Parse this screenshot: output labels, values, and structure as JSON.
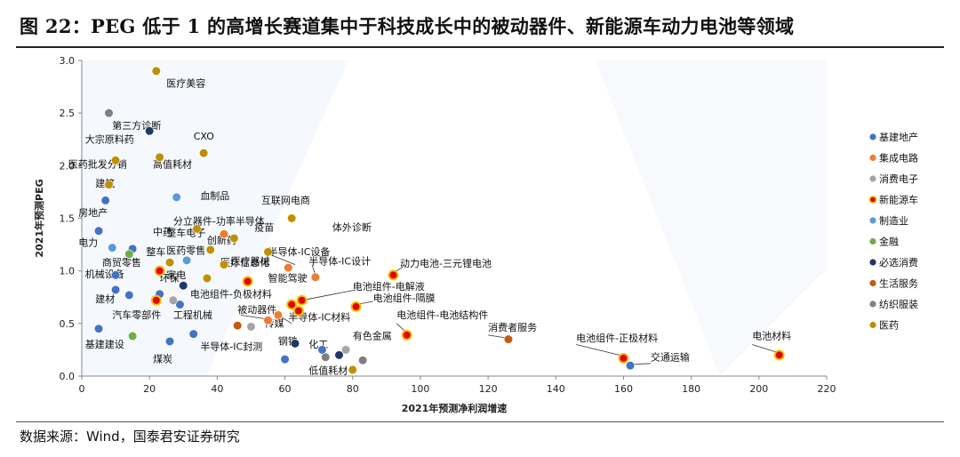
{
  "title": "图 22：PEG 低于 1 的高增长赛道集中于科技成长中的被动器件、新能源车动力电池等领域",
  "source": "数据来源：Wind，国泰君安证券研究",
  "chart_data": {
    "type": "scatter",
    "xlabel": "2021年预测净利润增速",
    "ylabel": "2021年预测PEG",
    "xlim": [
      0,
      220
    ],
    "ylim": [
      0,
      3.0
    ],
    "x_ticks": [
      "0",
      "20",
      "40",
      "60",
      "80",
      "100",
      "120",
      "140",
      "160",
      "180",
      "200",
      "220"
    ],
    "y_ticks": [
      "0.0",
      "0.5",
      "1.0",
      "1.5",
      "2.0",
      "2.5",
      "3.0"
    ],
    "grid": false,
    "legend_position": "right",
    "series": [
      {
        "name": "基建地产",
        "color": "#4472c4",
        "style": "solid",
        "points": [
          {
            "x": 5,
            "y": 1.38,
            "label": "房地产"
          },
          {
            "x": 7,
            "y": 1.67
          },
          {
            "x": 15,
            "y": 1.21,
            "label": "电力"
          },
          {
            "x": 10,
            "y": 0.96,
            "label": "机械设备"
          },
          {
            "x": 14,
            "y": 0.77,
            "label": "建材"
          },
          {
            "x": 10,
            "y": 0.82
          },
          {
            "x": 23,
            "y": 0.78
          },
          {
            "x": 29,
            "y": 0.68
          },
          {
            "x": 5,
            "y": 0.45,
            "label": "基建建设"
          },
          {
            "x": 26,
            "y": 0.33,
            "label": "煤炭"
          },
          {
            "x": 33,
            "y": 0.4
          },
          {
            "x": 60,
            "y": 0.16,
            "label": "钢铁"
          },
          {
            "x": 71,
            "y": 0.25,
            "label": "化工"
          },
          {
            "x": 162,
            "y": 0.1,
            "label": "交通运输"
          }
        ]
      },
      {
        "name": "集成电路",
        "color": "#ed7d31",
        "style": "solid",
        "points": [
          {
            "x": 42,
            "y": 1.35,
            "label": "分立器件-功率半导体"
          },
          {
            "x": 61,
            "y": 1.03,
            "label": "半导体-IC设备"
          },
          {
            "x": 69,
            "y": 0.94,
            "label": "半导体-IC设计"
          },
          {
            "x": 55,
            "y": 0.53,
            "label": "被动器件"
          },
          {
            "x": 58,
            "y": 0.58,
            "label": "半导体-IC材料"
          }
        ]
      },
      {
        "name": "消费电子",
        "color": "#a5a5a5",
        "style": "solid",
        "points": [
          {
            "x": 27,
            "y": 0.72,
            "label": "家电"
          },
          {
            "x": 50,
            "y": 0.47,
            "label": "传媒"
          },
          {
            "x": 78,
            "y": 0.25,
            "label": "有色金属"
          }
        ]
      },
      {
        "name": "新能源车",
        "color": "#e50000",
        "style": "ring",
        "points": [
          {
            "x": 62,
            "y": 0.68,
            "label": "智能驾驶"
          },
          {
            "x": 64,
            "y": 0.62
          },
          {
            "x": 65,
            "y": 0.72
          },
          {
            "x": 81,
            "y": 0.66,
            "label": "电池组件-隔膜"
          },
          {
            "x": 92,
            "y": 0.96,
            "label": "动力电池-三元锂电池"
          },
          {
            "x": 96,
            "y": 0.39,
            "label": "电池组件-电池结构件"
          },
          {
            "x": 160,
            "y": 0.17,
            "label": "电池组件-正极材料"
          },
          {
            "x": 206,
            "y": 0.2,
            "label": "电池材料"
          },
          {
            "x": 23,
            "y": 1.0,
            "label": "整车"
          },
          {
            "x": 49,
            "y": 0.9,
            "label": "电池组件-负极材料"
          },
          {
            "x": 22,
            "y": 0.72
          }
        ]
      },
      {
        "name": "制造业",
        "color": "#5b9bd5",
        "style": "solid",
        "points": [
          {
            "x": 28,
            "y": 1.7,
            "label": "血制品"
          },
          {
            "x": 9,
            "y": 1.22
          },
          {
            "x": 31,
            "y": 1.1,
            "label": "工程机械"
          }
        ]
      },
      {
        "name": "金融",
        "color": "#70ad47",
        "style": "solid",
        "points": [
          {
            "x": 15,
            "y": 0.38,
            "label": "汽车零部件"
          },
          {
            "x": 14,
            "y": 1.16,
            "label": "商贸零售"
          }
        ]
      },
      {
        "name": "必选消费",
        "color": "#1f3864",
        "style": "solid",
        "points": [
          {
            "x": 20,
            "y": 2.33,
            "label": "第三方诊断"
          },
          {
            "x": 30,
            "y": 0.86,
            "label": "环保"
          },
          {
            "x": 63,
            "y": 0.31
          },
          {
            "x": 76,
            "y": 0.2
          }
        ]
      },
      {
        "name": "生活服务",
        "color": "#c55a11",
        "style": "solid",
        "points": [
          {
            "x": 46,
            "y": 0.48
          },
          {
            "x": 126,
            "y": 0.35,
            "label": "消费者服务"
          }
        ]
      },
      {
        "name": "纺织服装",
        "color": "#7f7f7f",
        "style": "solid",
        "points": [
          {
            "x": 8,
            "y": 2.5
          },
          {
            "x": 72,
            "y": 0.18,
            "label": "低值耗材"
          },
          {
            "x": 83,
            "y": 0.15
          }
        ]
      },
      {
        "name": "医药",
        "color": "#bf9000",
        "style": "solid",
        "points": [
          {
            "x": 22,
            "y": 2.9,
            "label": "医疗美容"
          },
          {
            "x": 10,
            "y": 2.05,
            "label": "大宗原料药"
          },
          {
            "x": 8,
            "y": 1.82,
            "label": "医药批发分销"
          },
          {
            "x": 36,
            "y": 2.12,
            "label": "CXO"
          },
          {
            "x": 23,
            "y": 2.08,
            "label": "高值耗材"
          },
          {
            "x": 62,
            "y": 1.5,
            "label": "互联网电商"
          },
          {
            "x": 34,
            "y": 1.4,
            "label": "医药零售"
          },
          {
            "x": 45,
            "y": 1.31,
            "label": "疫苗"
          },
          {
            "x": 26,
            "y": 1.08,
            "label": "医疗器械"
          },
          {
            "x": 38,
            "y": 1.2,
            "label": "创新药"
          },
          {
            "x": 55,
            "y": 1.18,
            "label": "体外诊断"
          },
          {
            "x": 42,
            "y": 1.06,
            "label": "医疗信息化"
          },
          {
            "x": 37,
            "y": 0.93,
            "label": "电池组件-负极材料"
          },
          {
            "x": 80,
            "y": 0.06
          }
        ]
      }
    ],
    "annotations": [
      {
        "text": "第三方诊断",
        "x": 9,
        "y": 2.35
      },
      {
        "text": "大宗原料药",
        "x": 1,
        "y": 2.22
      },
      {
        "text": "CXO",
        "x": 33,
        "y": 2.25
      },
      {
        "text": "医疗美容",
        "x": 25,
        "y": 2.75
      },
      {
        "text": "医药批发分销",
        "x": -4,
        "y": 1.98
      },
      {
        "text": "高值耗材",
        "x": 21,
        "y": 1.98
      },
      {
        "text": "建筑",
        "x": 4,
        "y": 1.8
      },
      {
        "text": "血制品",
        "x": 35,
        "y": 1.68
      },
      {
        "text": "互联网电商",
        "x": 53,
        "y": 1.64
      },
      {
        "text": "房地产",
        "x": -1,
        "y": 1.52
      },
      {
        "text": "分立器件-功率半导体",
        "x": 27,
        "y": 1.44
      },
      {
        "text": "体外诊断",
        "x": 74,
        "y": 1.38
      },
      {
        "text": "疫苗",
        "x": 51,
        "y": 1.38
      },
      {
        "text": "中药",
        "x": 21,
        "y": 1.34
      },
      {
        "text": "整车电子",
        "x": 25,
        "y": 1.33
      },
      {
        "text": "创新药",
        "x": 37,
        "y": 1.26
      },
      {
        "text": "电力",
        "x": -1,
        "y": 1.24
      },
      {
        "text": "半导体-IC设备",
        "x": 55,
        "y": 1.15
      },
      {
        "text": "整车",
        "x": 19,
        "y": 1.15
      },
      {
        "text": "医药零售",
        "x": 25,
        "y": 1.16
      },
      {
        "text": "商贸零售",
        "x": 6,
        "y": 1.05
      },
      {
        "text": "医疗器械",
        "x": 44,
        "y": 1.06
      },
      {
        "text": "半导体-IC设计",
        "x": 67,
        "y": 1.06
      },
      {
        "text": "动力电池-三元锂电池",
        "x": 94,
        "y": 1.04
      },
      {
        "text": "机械设备",
        "x": 1,
        "y": 0.94
      },
      {
        "text": "环保",
        "x": 23,
        "y": 0.9
      },
      {
        "text": "家电",
        "x": 25,
        "y": 0.93
      },
      {
        "text": "医疗信息化",
        "x": 41,
        "y": 1.05
      },
      {
        "text": "智能驾驶",
        "x": 55,
        "y": 0.9
      },
      {
        "text": "电池组件-电解液",
        "x": 80,
        "y": 0.82
      },
      {
        "text": "电池组件-负极材料",
        "x": 32,
        "y": 0.75
      },
      {
        "text": "建材",
        "x": 4,
        "y": 0.7
      },
      {
        "text": "电池组件-隔膜",
        "x": 86,
        "y": 0.71
      },
      {
        "text": "被动器件",
        "x": 46,
        "y": 0.6
      },
      {
        "text": "汽车零部件",
        "x": 9,
        "y": 0.55
      },
      {
        "text": "工程机械",
        "x": 27,
        "y": 0.55
      },
      {
        "text": "半导体-IC材料",
        "x": 61,
        "y": 0.53
      },
      {
        "text": "电池组件-电池结构件",
        "x": 93,
        "y": 0.55
      },
      {
        "text": "消费者服务",
        "x": 120,
        "y": 0.43
      },
      {
        "text": "传媒",
        "x": 54,
        "y": 0.47
      },
      {
        "text": "化工",
        "x": 67,
        "y": 0.27
      },
      {
        "text": "钢铁",
        "x": 58,
        "y": 0.3
      },
      {
        "text": "有色金属",
        "x": 80,
        "y": 0.35
      },
      {
        "text": "电池组件-正极材料",
        "x": 146,
        "y": 0.33
      },
      {
        "text": "电池材料",
        "x": 198,
        "y": 0.35
      },
      {
        "text": "基建建设",
        "x": 1,
        "y": 0.27
      },
      {
        "text": "半导体-IC封测",
        "x": 35,
        "y": 0.25
      },
      {
        "text": "交通运输",
        "x": 168,
        "y": 0.15
      },
      {
        "text": "煤炭",
        "x": 21,
        "y": 0.13
      },
      {
        "text": "低值耗材",
        "x": 67,
        "y": 0.02
      }
    ]
  }
}
